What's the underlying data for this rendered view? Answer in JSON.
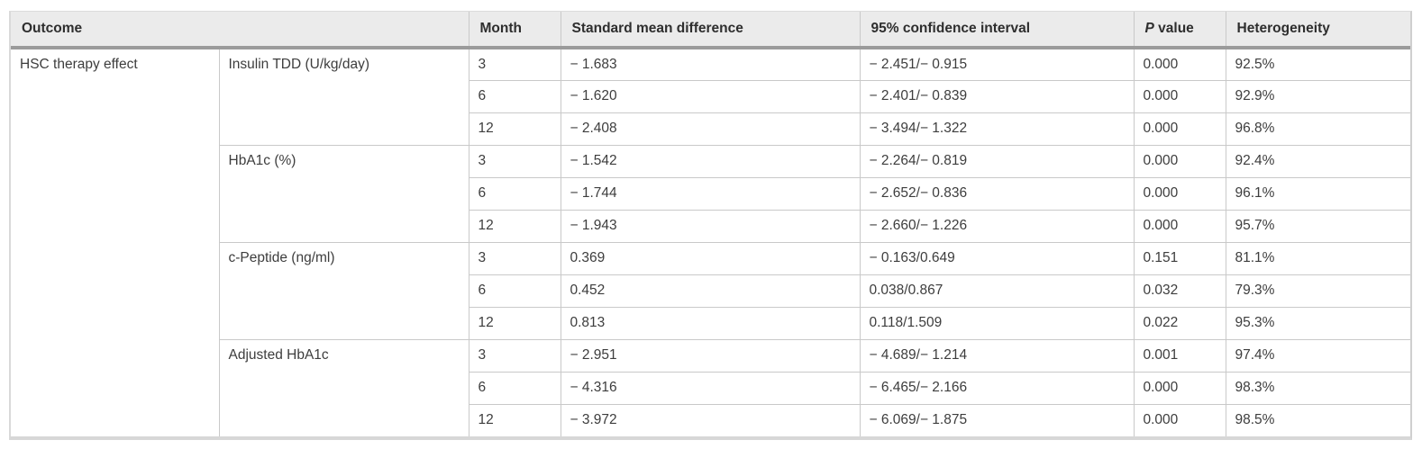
{
  "table": {
    "colors": {
      "header_bg": "#ebebeb",
      "header_band": "#9b9b9b",
      "grid_line": "#c9c9c9",
      "outer_border": "#d7d7d7",
      "header_text": "#2e2e2e",
      "body_text": "#3d3d3d"
    },
    "headers": [
      {
        "label": "Outcome",
        "colspan": 2
      },
      {
        "label": "Month"
      },
      {
        "label": "Standard mean difference"
      },
      {
        "label": "95% confidence interval"
      },
      {
        "italic": "P",
        "rest": " value"
      },
      {
        "label": "Heterogeneity"
      }
    ],
    "outcome_group": "HSC therapy effect",
    "groups": [
      {
        "outcome": "Insulin TDD (U/kg/day)",
        "rows": [
          {
            "month": "3",
            "smd": "− 1.683",
            "ci": "− 2.451/− 0.915",
            "p": "0.000",
            "het": "92.5%"
          },
          {
            "month": "6",
            "smd": "− 1.620",
            "ci": "− 2.401/− 0.839",
            "p": "0.000",
            "het": "92.9%"
          },
          {
            "month": "12",
            "smd": "− 2.408",
            "ci": "− 3.494/− 1.322",
            "p": "0.000",
            "het": "96.8%"
          }
        ]
      },
      {
        "outcome": "HbA1c (%)",
        "rows": [
          {
            "month": "3",
            "smd": "− 1.542",
            "ci": "− 2.264/− 0.819",
            "p": "0.000",
            "het": "92.4%"
          },
          {
            "month": "6",
            "smd": "− 1.744",
            "ci": "− 2.652/− 0.836",
            "p": "0.000",
            "het": "96.1%"
          },
          {
            "month": "12",
            "smd": "− 1.943",
            "ci": "− 2.660/− 1.226",
            "p": "0.000",
            "het": "95.7%"
          }
        ]
      },
      {
        "outcome": "c-Peptide (ng/ml)",
        "rows": [
          {
            "month": "3",
            "smd": "0.369",
            "ci": "− 0.163/0.649",
            "p": "0.151",
            "het": "81.1%"
          },
          {
            "month": "6",
            "smd": "0.452",
            "ci": "0.038/0.867",
            "p": "0.032",
            "het": "79.3%"
          },
          {
            "month": "12",
            "smd": "0.813",
            "ci": "0.118/1.509",
            "p": "0.022",
            "het": "95.3%"
          }
        ]
      },
      {
        "outcome": "Adjusted HbA1c",
        "rows": [
          {
            "month": "3",
            "smd": "− 2.951",
            "ci": "− 4.689/− 1.214",
            "p": "0.001",
            "het": "97.4%"
          },
          {
            "month": "6",
            "smd": "− 4.316",
            "ci": "− 6.465/− 2.166",
            "p": "0.000",
            "het": "98.3%"
          },
          {
            "month": "12",
            "smd": "− 3.972",
            "ci": "− 6.069/− 1.875",
            "p": "0.000",
            "het": "98.5%"
          }
        ]
      }
    ]
  }
}
